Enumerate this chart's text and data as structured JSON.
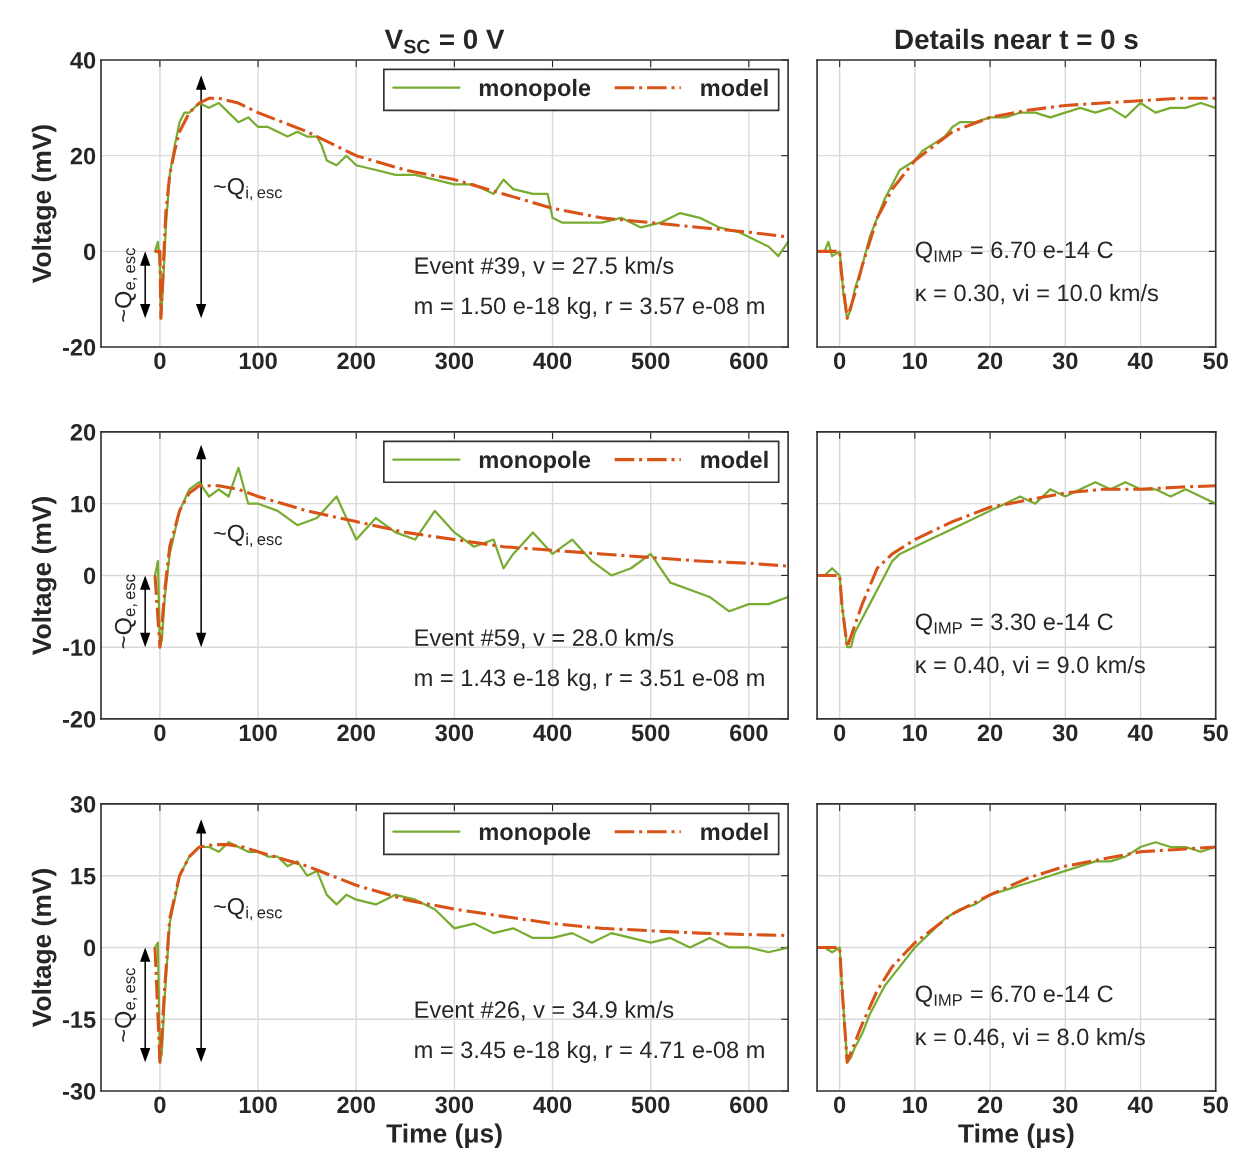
{
  "chart_data": [
    {
      "type": "line",
      "title": "V$_{SC}$ = 0 V",
      "ylabel": "Voltage (mV)",
      "xlim": [
        -60,
        640
      ],
      "ylim": [
        -20,
        40
      ],
      "xticks": [
        0,
        100,
        200,
        300,
        400,
        500,
        600
      ],
      "yticks": [
        -20,
        0,
        20,
        40
      ],
      "grid": true,
      "legend": "top right",
      "annotations": [
        "~Q$_{i,esc}$",
        "~Q$_{e,esc}$",
        "Event #39, v = 27.5 km/s",
        "m = 1.50 e-18 kg, r = 3.57 e-08 m"
      ],
      "series": [
        {
          "name": "monopole",
          "color": "#77ac30",
          "line_style": "solid",
          "x": [
            -5,
            -2,
            0,
            1,
            3,
            6,
            10,
            15,
            20,
            25,
            30,
            40,
            50,
            60,
            70,
            80,
            90,
            100,
            110,
            120,
            130,
            140,
            150,
            160,
            165,
            170,
            180,
            190,
            200,
            220,
            240,
            260,
            280,
            300,
            320,
            340,
            350,
            360,
            380,
            395,
            400,
            410,
            430,
            450,
            470,
            490,
            510,
            530,
            550,
            570,
            590,
            610,
            620,
            630,
            640
          ],
          "values": [
            0,
            2,
            -3,
            -14,
            -8,
            5,
            16,
            22,
            27,
            29,
            29,
            31,
            30,
            31,
            29,
            27,
            28,
            26,
            26,
            25,
            24,
            25,
            24,
            24,
            22,
            19,
            18,
            20,
            18,
            17,
            16,
            16,
            15,
            14,
            14,
            12,
            15,
            13,
            12,
            12,
            7,
            6,
            6,
            6,
            7,
            5,
            6,
            8,
            7,
            5,
            4,
            2,
            1,
            -1,
            2
          ]
        },
        {
          "name": "model",
          "color": "#d95319",
          "line_style": "dashdot",
          "x": [
            -5,
            0,
            1,
            3,
            6,
            10,
            15,
            20,
            30,
            40,
            50,
            60,
            80,
            100,
            150,
            200,
            250,
            300,
            350,
            400,
            450,
            500,
            550,
            600,
            640
          ],
          "values": [
            0,
            0,
            -14,
            -5,
            8,
            16,
            21,
            25,
            29,
            31,
            32,
            32,
            31,
            29,
            25,
            20,
            17,
            15,
            12,
            9,
            7,
            6,
            5,
            4,
            3
          ]
        }
      ]
    },
    {
      "type": "line",
      "title": "Details near t = 0 s",
      "xlim": [
        -3,
        50
      ],
      "ylim": [
        -20,
        40
      ],
      "xticks": [
        0,
        10,
        20,
        30,
        40,
        50
      ],
      "yticks": [
        -20,
        0,
        20,
        40
      ],
      "grid": true,
      "tick_labels": "x",
      "annotations": [
        "Q$_{IMP}$ = 6.70 e-14 C",
        "κ = 0.30, vi = 10.0 km/s"
      ],
      "series": [
        {
          "color": "#77ac30",
          "line_style": "solid",
          "x": [
            -3,
            -2,
            -1.5,
            -1,
            0,
            0.2,
            0.5,
            1,
            1.5,
            2,
            3,
            4,
            5,
            6,
            7,
            8,
            9,
            10,
            11,
            12,
            13,
            14,
            15,
            16,
            18,
            20,
            22,
            24,
            26,
            28,
            30,
            32,
            34,
            36,
            38,
            40,
            42,
            44,
            46,
            48,
            50
          ],
          "values": [
            0,
            0,
            2,
            -1,
            0,
            -3,
            -9,
            -14,
            -12,
            -8,
            -3,
            3,
            7,
            11,
            14,
            17,
            18,
            19,
            21,
            22,
            23,
            24,
            26,
            27,
            27,
            28,
            28,
            29,
            29,
            28,
            29,
            30,
            29,
            30,
            28,
            31,
            29,
            30,
            30,
            31,
            30
          ]
        },
        {
          "color": "#d95319",
          "line_style": "dashdot",
          "x": [
            -3,
            0,
            0.2,
            1,
            2,
            3,
            5,
            7,
            10,
            15,
            20,
            25,
            30,
            35,
            40,
            45,
            50
          ],
          "values": [
            0,
            0,
            -4,
            -14,
            -9,
            -3,
            7,
            13,
            19,
            25,
            28,
            29.5,
            30.5,
            31,
            31.5,
            32,
            32
          ]
        }
      ]
    },
    {
      "type": "line",
      "ylabel": "Voltage (mV)",
      "xlim": [
        -60,
        640
      ],
      "ylim": [
        -20,
        20
      ],
      "xticks": [
        0,
        100,
        200,
        300,
        400,
        500,
        600
      ],
      "yticks": [
        -20,
        -10,
        0,
        10,
        20
      ],
      "grid": true,
      "legend": "top right",
      "annotations": [
        "~Q$_{i,esc}$",
        "~Q$_{e,esc}$",
        "Event #59, v = 28.0 km/s",
        "m = 1.43 e-18 kg, r = 3.51 e-08 m"
      ],
      "series": [
        {
          "name": "monopole",
          "color": "#77ac30",
          "line_style": "solid",
          "x": [
            -5,
            -2,
            0,
            2,
            5,
            10,
            20,
            30,
            40,
            50,
            60,
            70,
            80,
            90,
            100,
            120,
            140,
            160,
            180,
            200,
            220,
            240,
            260,
            280,
            300,
            320,
            340,
            350,
            360,
            380,
            400,
            420,
            440,
            460,
            480,
            500,
            520,
            540,
            560,
            580,
            600,
            620,
            640
          ],
          "values": [
            0,
            2,
            -10,
            -9,
            -3,
            3,
            9,
            12,
            13,
            11,
            12,
            11,
            15,
            10,
            10,
            9,
            7,
            8,
            11,
            5,
            8,
            6,
            5,
            9,
            6,
            4,
            5,
            1,
            3,
            6,
            3,
            5,
            2,
            0,
            1,
            3,
            -1,
            -2,
            -3,
            -5,
            -4,
            -4,
            -3
          ]
        },
        {
          "name": "model",
          "color": "#d95319",
          "line_style": "dashdot",
          "x": [
            -5,
            0,
            2,
            5,
            10,
            20,
            30,
            40,
            60,
            80,
            100,
            150,
            200,
            250,
            300,
            350,
            400,
            450,
            500,
            550,
            600,
            640
          ],
          "values": [
            0,
            -10,
            -7,
            -2,
            4,
            9,
            11.5,
            12.5,
            12.5,
            12,
            11,
            9,
            7.5,
            6,
            5,
            4,
            3.5,
            3,
            2.5,
            2,
            1.7,
            1.3
          ]
        }
      ]
    },
    {
      "type": "line",
      "xlim": [
        -3,
        50
      ],
      "ylim": [
        -20,
        20
      ],
      "xticks": [
        0,
        10,
        20,
        30,
        40,
        50
      ],
      "yticks": [
        -20,
        -10,
        0,
        10,
        20
      ],
      "grid": true,
      "tick_labels": "x",
      "annotations": [
        "Q$_{IMP}$ = 3.30 e-14 C",
        "κ = 0.40, vi = 9.0 km/s"
      ],
      "series": [
        {
          "color": "#77ac30",
          "line_style": "solid",
          "x": [
            -3,
            -2,
            -1,
            0,
            0.3,
            1,
            1.5,
            2,
            3,
            4,
            5,
            6,
            7,
            8,
            10,
            12,
            14,
            16,
            18,
            20,
            22,
            24,
            26,
            28,
            30,
            32,
            34,
            36,
            38,
            40,
            42,
            44,
            46,
            48,
            50
          ],
          "values": [
            0,
            0,
            1,
            0,
            -4,
            -10,
            -10,
            -8,
            -6,
            -4,
            -2,
            0,
            2,
            3,
            4,
            5,
            6,
            7,
            8,
            9,
            10,
            11,
            10,
            12,
            11,
            12,
            13,
            12,
            13,
            12,
            12,
            11,
            12,
            11,
            10
          ]
        },
        {
          "color": "#d95319",
          "line_style": "dashdot",
          "x": [
            -3,
            0,
            0.3,
            1,
            2,
            3,
            5,
            7,
            10,
            15,
            20,
            25,
            30,
            35,
            40,
            45,
            50
          ],
          "values": [
            0,
            0,
            -4,
            -10,
            -7,
            -4,
            1,
            3,
            5,
            7.5,
            9.5,
            10.5,
            11.5,
            12,
            12,
            12.3,
            12.5
          ]
        }
      ]
    },
    {
      "type": "line",
      "ylabel": "Voltage (mV)",
      "xlabel": "Time (μs)",
      "xlim": [
        -60,
        640
      ],
      "ylim": [
        -30,
        30
      ],
      "xticks": [
        0,
        100,
        200,
        300,
        400,
        500,
        600
      ],
      "yticks": [
        -30,
        -15,
        0,
        15,
        30
      ],
      "grid": true,
      "legend": "top right",
      "annotations": [
        "~Q$_{i,esc}$",
        "~Q$_{e,esc}$",
        "Event #26, v = 34.9 km/s",
        "m = 3.45 e-18 kg, r = 4.71 e-08 m"
      ],
      "series": [
        {
          "name": "monopole",
          "color": "#77ac30",
          "line_style": "solid",
          "x": [
            -5,
            -2,
            0,
            2,
            5,
            10,
            20,
            30,
            40,
            50,
            60,
            70,
            80,
            90,
            100,
            110,
            120,
            130,
            140,
            150,
            160,
            170,
            180,
            190,
            200,
            220,
            240,
            260,
            280,
            300,
            320,
            340,
            360,
            380,
            400,
            420,
            440,
            460,
            480,
            500,
            520,
            540,
            560,
            580,
            600,
            620,
            640
          ],
          "values": [
            0,
            1,
            -24,
            -22,
            -10,
            5,
            15,
            19,
            21,
            21,
            20,
            22,
            21,
            20,
            20,
            19,
            19,
            17,
            18,
            15,
            16,
            11,
            9,
            11,
            10,
            9,
            11,
            10,
            8,
            4,
            5,
            3,
            4,
            2,
            2,
            3,
            1,
            3,
            2,
            1,
            2,
            0,
            2,
            0,
            0,
            -1,
            0
          ]
        },
        {
          "name": "model",
          "color": "#d95319",
          "line_style": "dashdot",
          "x": [
            -5,
            0,
            2,
            5,
            10,
            20,
            30,
            40,
            55,
            70,
            85,
            100,
            125,
            150,
            200,
            250,
            300,
            350,
            400,
            450,
            500,
            550,
            600,
            640
          ],
          "values": [
            0,
            -24,
            -18,
            -8,
            6,
            15,
            19,
            21,
            21.5,
            21.5,
            21,
            20,
            18.5,
            17,
            13,
            10,
            8,
            6.5,
            5,
            4,
            3.5,
            3,
            2.7,
            2.5
          ]
        }
      ]
    },
    {
      "type": "line",
      "xlabel": "Time (μs)",
      "xlim": [
        -3,
        50
      ],
      "ylim": [
        -30,
        30
      ],
      "xticks": [
        0,
        10,
        20,
        30,
        40,
        50
      ],
      "yticks": [
        -30,
        -15,
        0,
        15,
        30
      ],
      "grid": true,
      "tick_labels": "x",
      "annotations": [
        "Q$_{IMP}$ = 6.70 e-14 C",
        "κ = 0.46, vi = 8.0 km/s"
      ],
      "series": [
        {
          "color": "#77ac30",
          "line_style": "solid",
          "x": [
            -3,
            -2,
            -1,
            0,
            0.3,
            1,
            1.5,
            2,
            3,
            4,
            5,
            6,
            7,
            8,
            10,
            12,
            14,
            16,
            18,
            20,
            22,
            24,
            26,
            28,
            30,
            32,
            34,
            36,
            38,
            40,
            42,
            44,
            46,
            48,
            50
          ],
          "values": [
            0,
            0,
            -1,
            0,
            -8,
            -24,
            -23,
            -21,
            -18,
            -14,
            -11,
            -8,
            -6,
            -4,
            0,
            3,
            6,
            8,
            9,
            11,
            12,
            13,
            14,
            15,
            16,
            17,
            18,
            18,
            19,
            21,
            22,
            21,
            21,
            20,
            21
          ]
        },
        {
          "color": "#d95319",
          "line_style": "dashdot",
          "x": [
            -3,
            0,
            0.3,
            1,
            2,
            3,
            5,
            7,
            10,
            15,
            20,
            25,
            30,
            35,
            40,
            45,
            50
          ],
          "values": [
            0,
            0,
            -8,
            -24,
            -20,
            -16,
            -9,
            -4,
            1,
            7,
            11,
            14.5,
            17,
            18.5,
            20,
            20.5,
            21
          ]
        }
      ]
    }
  ]
}
